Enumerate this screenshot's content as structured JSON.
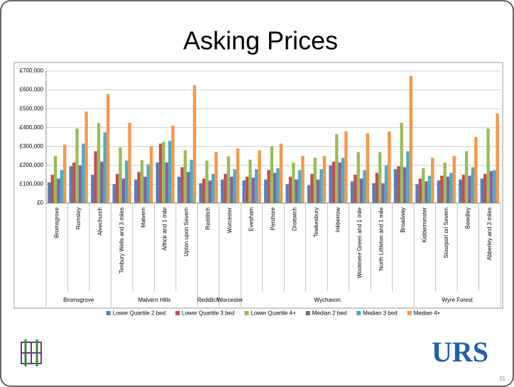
{
  "slide_title": "Asking Prices",
  "logo": "URS",
  "page_number": "21",
  "chart_data": {
    "type": "bar",
    "categories": [
      "Bromsgrove",
      "Romsley",
      "Alvechurch",
      "Tenbury Wells and 3 miles",
      "Malvern",
      "Alfrick and 1 mile",
      "Upton upon Severn",
      "Redditch",
      "Worcester",
      "Evesham",
      "Pershore",
      "Droitwich",
      "Tewkesbury",
      "Inkberrow",
      "Woolmere Green and 1 mile",
      "North Littleton and 1 mile",
      "Broadway",
      "Kidderminster",
      "Stourport on Severn",
      "Bewdley",
      "Abberley and 3 miles"
    ],
    "groups": [
      {
        "label": "Bromsgrove",
        "span": 3
      },
      {
        "label": "Malvern Hills",
        "span": 4
      },
      {
        "label": "Redditch",
        "span": 1
      },
      {
        "label": "Worcester",
        "span": 1
      },
      {
        "label": "Wychavon",
        "span": 8
      },
      {
        "label": "Wyre Forest",
        "span": 4
      }
    ],
    "series": [
      {
        "name": "Lower Quartile 2 bed",
        "color": "#4f81bd",
        "values": [
          110000,
          195000,
          150000,
          100000,
          125000,
          215000,
          140000,
          105000,
          125000,
          120000,
          125000,
          100000,
          95000,
          200000,
          115000,
          105000,
          180000,
          100000,
          120000,
          125000,
          130000
        ]
      },
      {
        "name": "Lower Quartile 3 bed",
        "color": "#c0504d",
        "values": [
          150000,
          215000,
          275000,
          155000,
          165000,
          315000,
          190000,
          130000,
          155000,
          140000,
          175000,
          140000,
          155000,
          220000,
          150000,
          160000,
          195000,
          130000,
          145000,
          150000,
          155000
        ]
      },
      {
        "name": "Lower Quartile 4+",
        "color": "#9bbb59",
        "values": [
          250000,
          395000,
          425000,
          295000,
          228000,
          325000,
          280000,
          225000,
          248000,
          230000,
          300000,
          215000,
          240000,
          365000,
          270000,
          270000,
          425000,
          185000,
          215000,
          275000,
          395000
        ]
      },
      {
        "name": "Median 2 bed",
        "color": "#8064a2",
        "values": [
          130000,
          200000,
          220000,
          130000,
          140000,
          215000,
          165000,
          120000,
          140000,
          135000,
          160000,
          125000,
          125000,
          215000,
          130000,
          105000,
          190000,
          115000,
          140000,
          145000,
          170000
        ]
      },
      {
        "name": "Median 3 bed",
        "color": "#4bacc6",
        "values": [
          175000,
          315000,
          375000,
          225000,
          205000,
          330000,
          230000,
          155000,
          180000,
          180000,
          185000,
          175000,
          180000,
          240000,
          175000,
          200000,
          275000,
          145000,
          160000,
          190000,
          175000
        ]
      },
      {
        "name": "Median 4+",
        "color": "#f79646",
        "values": [
          310000,
          485000,
          578000,
          425000,
          300000,
          410000,
          625000,
          270000,
          290000,
          280000,
          315000,
          250000,
          250000,
          380000,
          370000,
          380000,
          675000,
          240000,
          250000,
          350000,
          475000
        ]
      }
    ],
    "ylim": [
      0,
      700000
    ],
    "yticks": [
      {
        "value": 0,
        "label": "£0"
      },
      {
        "value": 100000,
        "label": "£100,000"
      },
      {
        "value": 200000,
        "label": "£200,000"
      },
      {
        "value": 300000,
        "label": "£300,000"
      },
      {
        "value": 400000,
        "label": "£400,000"
      },
      {
        "value": 500000,
        "label": "£500,000"
      },
      {
        "value": 600000,
        "label": "£600,000"
      },
      {
        "value": 700000,
        "label": "£700,000"
      }
    ],
    "grid": true,
    "legend": "bottom"
  }
}
